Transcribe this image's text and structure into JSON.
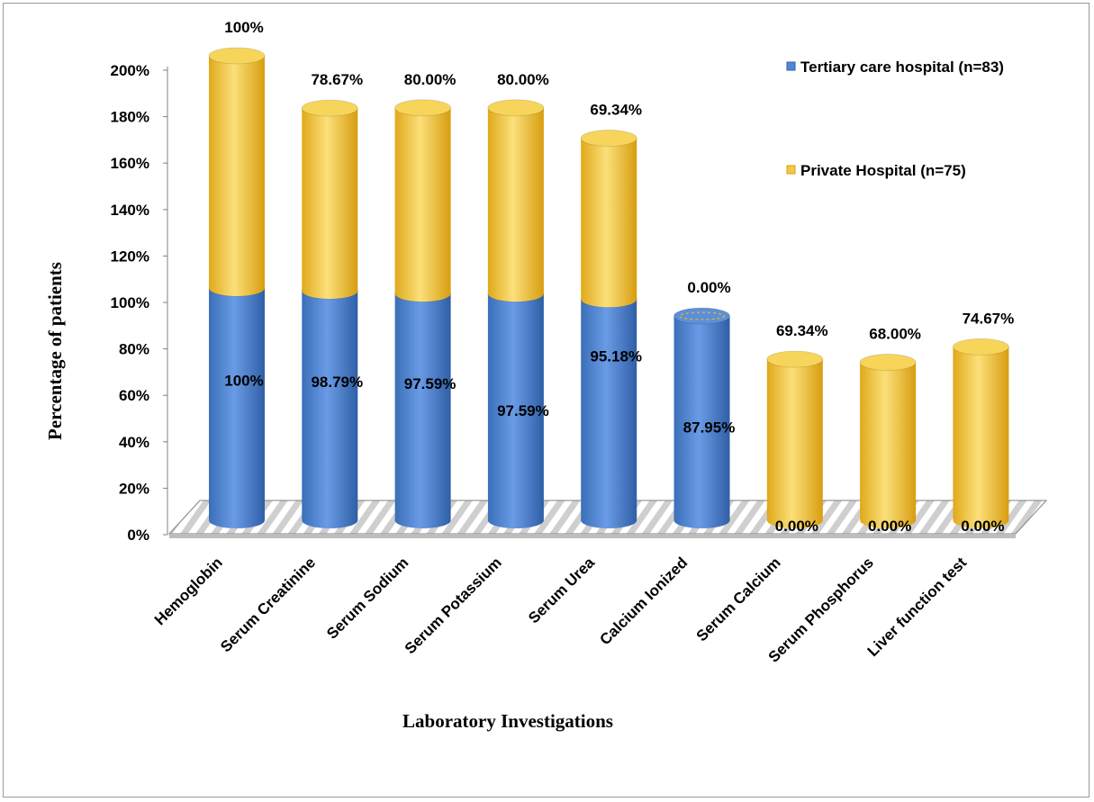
{
  "chart_data": {
    "type": "bar",
    "stacked": true,
    "three_d": true,
    "categories": [
      "Hemoglobin",
      "Serum Creatinine",
      "Serum Sodium",
      "Serum Potassium",
      "Serum Urea",
      "Calcium Ionized",
      "Serum Calcium",
      "Serum Phosphorus",
      "Liver function test"
    ],
    "series": [
      {
        "name": "Tertiary care hospital (n=83)",
        "color": "#4f86d6",
        "values": [
          100,
          98.79,
          97.59,
          97.59,
          95.18,
          87.95,
          0,
          0,
          0
        ],
        "labels": [
          "100%",
          "98.79%",
          "97.59%",
          "97.59%",
          "95.18%",
          "87.95%",
          "0.00%",
          "0.00%",
          "0.00%"
        ]
      },
      {
        "name": "Private Hospital (n=75)",
        "color": "#f5c842",
        "values": [
          100,
          78.67,
          80.0,
          80.0,
          69.34,
          0,
          69.34,
          68.0,
          74.67
        ],
        "labels": [
          "100%",
          "78.67%",
          "80.00%",
          "80.00%",
          "69.34%",
          "0.00%",
          "69.34%",
          "68.00%",
          "74.67%"
        ]
      }
    ],
    "ytick_labels": [
      "0%",
      "20%",
      "40%",
      "60%",
      "80%",
      "100%",
      "120%",
      "140%",
      "160%",
      "180%",
      "200%"
    ],
    "ylim": [
      0,
      200
    ],
    "xlabel": "Laboratory Investigations",
    "ylabel": "Percentage of patients",
    "legend_position": "top-right",
    "grid": false
  }
}
